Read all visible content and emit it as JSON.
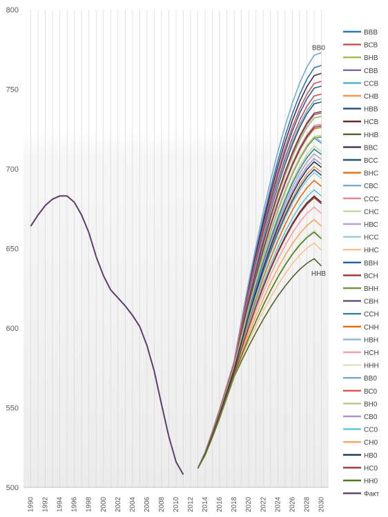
{
  "chart_data": {
    "type": "line",
    "title": "",
    "xlabel": "",
    "ylabel": "",
    "ylim": [
      500,
      800
    ],
    "yticks": [
      500,
      550,
      600,
      650,
      700,
      750,
      800
    ],
    "xlim": [
      1990,
      2030
    ],
    "xticks": [
      1990,
      1992,
      1994,
      1996,
      1998,
      2000,
      2002,
      2004,
      2006,
      2008,
      2010,
      2012,
      2014,
      2016,
      2018,
      2020,
      2022,
      2024,
      2026,
      2028,
      2030
    ],
    "grid": "vertical",
    "legend_position": "right",
    "annotations": [
      {
        "text": "ВВ0",
        "x": 2030,
        "y": 773
      },
      {
        "text": "ННВ",
        "x": 2030,
        "y": 639
      }
    ],
    "fact": {
      "name": "Факт",
      "color": "#5b3c6e",
      "x": [
        1990,
        1991,
        1992,
        1993,
        1994,
        1995,
        1996,
        1997,
        1998,
        1999,
        2000,
        2001,
        2002,
        2003,
        2004,
        2005,
        2006,
        2007,
        2008,
        2009,
        2010,
        2011
      ],
      "y": [
        664,
        671,
        677,
        681,
        683,
        683,
        679,
        671,
        660,
        645,
        633,
        624,
        619,
        614,
        608,
        601,
        589,
        573,
        552,
        532,
        516,
        508
      ]
    },
    "forecast_x": [
      2013,
      2014,
      2015,
      2016,
      2017,
      2018,
      2019,
      2020,
      2021,
      2022,
      2023,
      2024,
      2025,
      2026,
      2027,
      2028,
      2029,
      2030
    ],
    "series": [
      {
        "name": "ВВВ",
        "color": "#2e75b6",
        "final": 765
      },
      {
        "name": "ВСВ",
        "color": "#c0504d",
        "final": 747
      },
      {
        "name": "ВНВ",
        "color": "#9bbb59",
        "final": 733
      },
      {
        "name": "СВВ",
        "color": "#8064a2",
        "final": 735
      },
      {
        "name": "ССВ",
        "color": "#4bacc6",
        "final": 716
      },
      {
        "name": "СНВ",
        "color": "#f79646",
        "final": 698
      },
      {
        "name": "НВВ",
        "color": "#1f497d",
        "final": 696
      },
      {
        "name": "НСВ",
        "color": "#632523",
        "final": 679
      },
      {
        "name": "ННВ",
        "color": "#4f6228",
        "final": 639
      },
      {
        "name": "ВВС",
        "color": "#403151",
        "final": 760
      },
      {
        "name": "ВСС",
        "color": "#215968",
        "final": 742
      },
      {
        "name": "ВНС",
        "color": "#e46c0a",
        "final": 726
      },
      {
        "name": "СВС",
        "color": "#7ba7d7",
        "final": 744
      },
      {
        "name": "ССС",
        "color": "#e6838a",
        "final": 728
      },
      {
        "name": "СНС",
        "color": "#c4d79b",
        "final": 711
      },
      {
        "name": "НВС",
        "color": "#b3a2c7",
        "final": 706
      },
      {
        "name": "НСС",
        "color": "#93cddd",
        "final": 694
      },
      {
        "name": "ННС",
        "color": "#fac090",
        "final": 649
      },
      {
        "name": "ВВН",
        "color": "#2060a0",
        "final": 752
      },
      {
        "name": "ВСН",
        "color": "#a0302d",
        "final": 736
      },
      {
        "name": "ВНН",
        "color": "#76923c",
        "final": 720
      },
      {
        "name": "СВН",
        "color": "#5f497a",
        "final": 727
      },
      {
        "name": "ССН",
        "color": "#31859c",
        "final": 709
      },
      {
        "name": "СНН",
        "color": "#e26b0a",
        "final": 689
      },
      {
        "name": "НВН",
        "color": "#8eb4e3",
        "final": 717
      },
      {
        "name": "НСН",
        "color": "#f2a0a0",
        "final": 672
      },
      {
        "name": "ННН",
        "color": "#d7e4bd",
        "final": 657
      },
      {
        "name": "ВВ0",
        "color": "#7aa6d6",
        "final": 773
      },
      {
        "name": "ВС0",
        "color": "#d9534f",
        "final": 755
      },
      {
        "name": "ВН0",
        "color": "#b4c97e",
        "final": 721
      },
      {
        "name": "СВ0",
        "color": "#a896c4",
        "final": 703
      },
      {
        "name": "СС0",
        "color": "#5cc4d8",
        "final": 683
      },
      {
        "name": "СН0",
        "color": "#f9a65a",
        "final": 664
      },
      {
        "name": "НВ0",
        "color": "#17375e",
        "final": 701
      },
      {
        "name": "НС0",
        "color": "#953735",
        "final": 678
      },
      {
        "name": "НН0",
        "color": "#4e7a1e",
        "final": 656
      }
    ],
    "legend_extra": {
      "name": "Факт",
      "color": "#5b3c6e"
    }
  }
}
